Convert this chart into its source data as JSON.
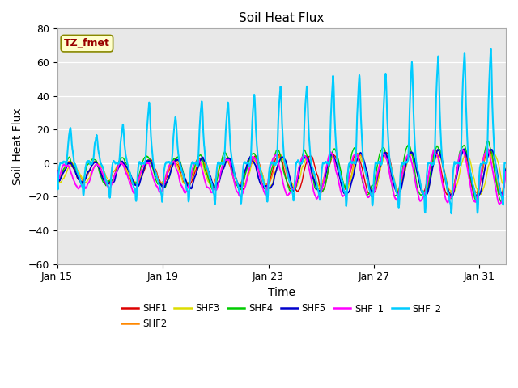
{
  "title": "Soil Heat Flux",
  "xlabel": "Time",
  "ylabel": "Soil Heat Flux",
  "ylim": [
    -60,
    80
  ],
  "yticks": [
    -60,
    -40,
    -20,
    0,
    20,
    40,
    60,
    80
  ],
  "xtick_labels": [
    "Jan 15",
    "Jan 19",
    "Jan 23",
    "Jan 27",
    "Jan 31"
  ],
  "xtick_positions": [
    0,
    4,
    8,
    12,
    16
  ],
  "xlim": [
    0,
    17
  ],
  "legend_entries": [
    "SHF1",
    "SHF2",
    "SHF3",
    "SHF4",
    "SHF5",
    "SHF_1",
    "SHF_2"
  ],
  "line_colors": {
    "SHF1": "#dd0000",
    "SHF2": "#ff8800",
    "SHF3": "#dddd00",
    "SHF4": "#00cc00",
    "SHF5": "#0000cc",
    "SHF_1": "#ff00ff",
    "SHF_2": "#00ccff"
  },
  "annotation_text": "TZ_fmet",
  "annotation_bg": "#ffffcc",
  "annotation_border": "#888800",
  "annotation_color": "#990000",
  "bg_inner": "#e8e8e8",
  "bg_outer": "#ffffff",
  "grid_color": "#ffffff",
  "n_points": 2016,
  "n_days": 17,
  "seed": 1234
}
